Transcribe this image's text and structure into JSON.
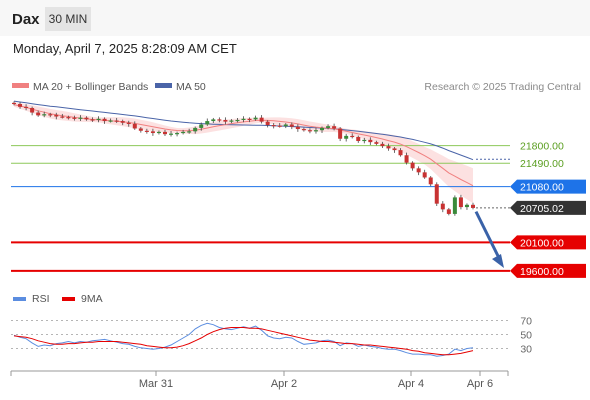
{
  "header": {
    "instrument": "Dax",
    "interval": "30 MIN",
    "datetime": "Monday, April 7, 2025 8:28:09 AM CET"
  },
  "legend": {
    "bollinger_label": "MA 20 + Bollinger Bands",
    "ma50_label": "MA 50",
    "credit": "Research © 2025 Trading Central",
    "rsi_label": "RSI",
    "rsi_ma_label": "9MA"
  },
  "colors": {
    "ma20": "#f08080",
    "bands_fill": "#fcdcdc",
    "ma50": "#4a64a8",
    "support_line": "#8dc85a",
    "support_text": "#5a9e20",
    "pivot": "#1e73e8",
    "last_price_bg": "#333333",
    "resistance_red": "#e60000",
    "arrow": "#3a62a8",
    "rsi": "#5b8de0",
    "rsi_ma": "#e60000",
    "candle_up": "#3a8a3a",
    "candle_down": "#c83232"
  },
  "chart_data": [
    {
      "type": "candlestick",
      "title": "Dax",
      "interval": "30 MIN",
      "x_ticks": [
        "Mar 31",
        "Apr 2",
        "Apr 4",
        "Apr 6"
      ],
      "levels": [
        {
          "value": 21800.0,
          "label": "21800.00",
          "role": "resistance"
        },
        {
          "value": 21490.0,
          "label": "21490.00",
          "role": "resistance"
        },
        {
          "value": 21080.0,
          "label": "21080.00",
          "role": "pivot"
        },
        {
          "value": 20705.02,
          "label": "20705.02",
          "role": "last"
        },
        {
          "value": 20100.0,
          "label": "20100.00",
          "role": "target"
        },
        {
          "value": 19600.0,
          "label": "19600.00",
          "role": "target"
        }
      ],
      "ylim": [
        19510,
        22600
      ],
      "close": [
        22530,
        22480,
        22460,
        22380,
        22330,
        22350,
        22340,
        22310,
        22300,
        22290,
        22280,
        22290,
        22260,
        22250,
        22270,
        22230,
        22240,
        22230,
        22200,
        22180,
        22100,
        22060,
        22050,
        22020,
        22040,
        22000,
        22010,
        22020,
        22040,
        22050,
        22110,
        22170,
        22230,
        22260,
        22250,
        22220,
        22240,
        22250,
        22270,
        22260,
        22290,
        22220,
        22160,
        22150,
        22140,
        22170,
        22130,
        22090,
        22070,
        22050,
        22070,
        22110,
        22140,
        22100,
        21920,
        21970,
        21950,
        21880,
        21900,
        21860,
        21830,
        21790,
        21750,
        21720,
        21630,
        21500,
        21400,
        21330,
        21240,
        21120,
        20780,
        20680,
        20600,
        20890,
        20720,
        20760,
        20705
      ],
      "ma20": [
        22520,
        22495,
        22470,
        22440,
        22410,
        22385,
        22360,
        22340,
        22325,
        22310,
        22295,
        22282,
        22270,
        22258,
        22250,
        22242,
        22235,
        22228,
        22218,
        22205,
        22190,
        22170,
        22150,
        22130,
        22110,
        22090,
        22075,
        22065,
        22060,
        22060,
        22068,
        22085,
        22108,
        22130,
        22150,
        22168,
        22185,
        22200,
        22215,
        22228,
        22240,
        22245,
        22242,
        22235,
        22225,
        22213,
        22198,
        22180,
        22160,
        22140,
        22125,
        22112,
        22103,
        22095,
        22072,
        22050,
        22030,
        22005,
        21985,
        21962,
        21940,
        21915,
        21888,
        21860,
        21825,
        21780,
        21730,
        21678,
        21622,
        21560,
        21480,
        21400,
        21320,
        21262,
        21205,
        21150,
        21095
      ],
      "ma50": [
        22580,
        22565,
        22550,
        22535,
        22520,
        22505,
        22492,
        22480,
        22468,
        22455,
        22442,
        22430,
        22418,
        22406,
        22394,
        22382,
        22370,
        22358,
        22346,
        22333,
        22320,
        22305,
        22290,
        22275,
        22260,
        22245,
        22232,
        22220,
        22210,
        22200,
        22192,
        22186,
        22180,
        22176,
        22172,
        22168,
        22165,
        22163,
        22161,
        22160,
        22158,
        22156,
        22152,
        22148,
        22144,
        22140,
        22135,
        22130,
        22124,
        22118,
        22112,
        22106,
        22100,
        22093,
        22083,
        22073,
        22062,
        22050,
        22038,
        22025,
        22012,
        21998,
        21983,
        21967,
        21950,
        21930,
        21908,
        21884,
        21858,
        21830,
        21795,
        21755,
        21712,
        21672,
        21632,
        21592,
        21552
      ]
    },
    {
      "type": "line",
      "title": "RSI",
      "series": [
        {
          "name": "RSI",
          "values": [
            49,
            46,
            44,
            38,
            33,
            35,
            34,
            37,
            38,
            40,
            38,
            40,
            39,
            41,
            42,
            43,
            41,
            39,
            37,
            36,
            33,
            31,
            30,
            29,
            30,
            32,
            35,
            40,
            45,
            50,
            58,
            63,
            66,
            64,
            60,
            58,
            57,
            59,
            61,
            59,
            62,
            56,
            48,
            45,
            44,
            46,
            45,
            40,
            36,
            37,
            38,
            41,
            42,
            40,
            34,
            38,
            37,
            33,
            35,
            33,
            32,
            30,
            29,
            29,
            27,
            24,
            22,
            22,
            21,
            21,
            19,
            20,
            22,
            29,
            27,
            30,
            31
          ]
        },
        {
          "name": "9MA",
          "values": [
            48,
            47,
            46,
            44,
            41,
            39,
            37,
            36,
            36,
            37,
            37,
            38,
            39,
            39,
            40,
            40,
            40,
            40,
            39,
            38,
            37,
            36,
            34,
            33,
            32,
            31,
            31,
            32,
            34,
            37,
            41,
            45,
            50,
            54,
            57,
            59,
            60,
            60,
            60,
            59,
            59,
            58,
            56,
            54,
            52,
            50,
            48,
            46,
            44,
            42,
            41,
            40,
            40,
            39,
            38,
            37,
            37,
            36,
            35,
            35,
            34,
            33,
            32,
            31,
            30,
            29,
            27,
            26,
            24,
            23,
            22,
            21,
            21,
            22,
            23,
            25,
            27
          ]
        }
      ],
      "ylim": [
        5,
        85
      ],
      "y_ticks": [
        70,
        50,
        30
      ]
    }
  ]
}
